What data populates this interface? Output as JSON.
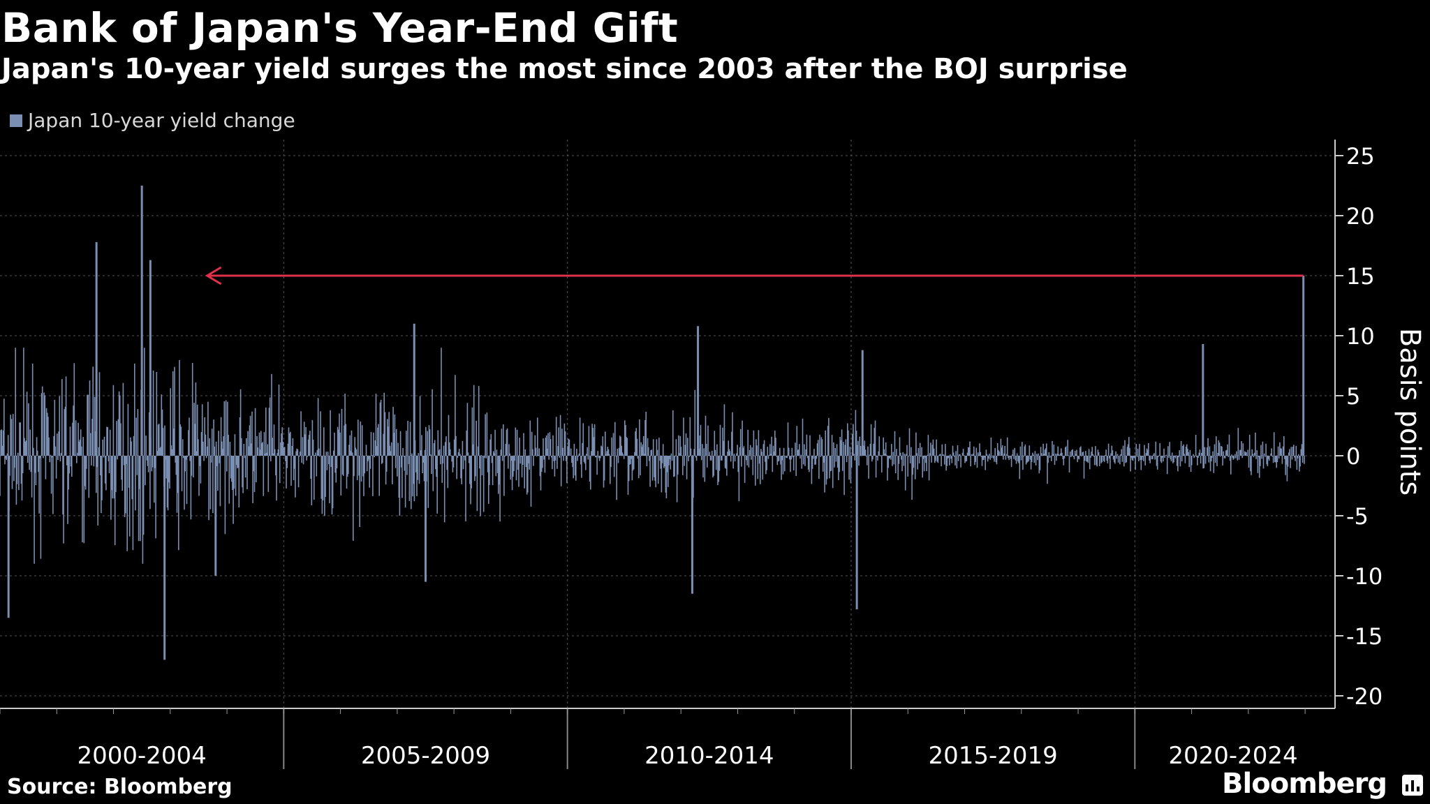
{
  "header": {
    "title": "Bank of Japan's Year-End Gift",
    "subtitle": "Japan's 10-year yield surges the most since 2003 after the BOJ surprise"
  },
  "footer": {
    "source": "Source: Bloomberg",
    "brand": "Bloomberg"
  },
  "colors": {
    "background": "#000000",
    "bars": "#7b8fb2",
    "arrow": "#e0304a",
    "grid": "#555555",
    "text": "#ffffff"
  },
  "chart_data": {
    "type": "bar",
    "title": "Bank of Japan's Year-End Gift",
    "subtitle": "Japan's 10-year yield surges the most since 2003 after the BOJ surprise",
    "ylabel": "Basis points",
    "xlabel": "",
    "ylim": [
      -21,
      26
    ],
    "yticks": [
      25,
      20,
      15,
      10,
      5,
      0,
      -5,
      -10,
      -15,
      -20
    ],
    "ytick_labels": [
      "25",
      "20",
      "15",
      "10",
      "5",
      "0",
      "-5",
      "-10",
      "-15",
      "-20"
    ],
    "x_range": [
      2000.0,
      2023.06
    ],
    "x_categories": [
      "2000-2004",
      "2005-2009",
      "2010-2014",
      "2015-2019",
      "2020-2024"
    ],
    "legend": [
      "Japan 10-year yield change"
    ],
    "legend_position": "top-left",
    "grid": true,
    "series": [
      {
        "name": "Japan 10-year yield change",
        "notable_values": [
          {
            "date": 2000.15,
            "value": -13.5
          },
          {
            "date": 2001.7,
            "value": 17.8
          },
          {
            "date": 2002.5,
            "value": 22.5
          },
          {
            "date": 2002.65,
            "value": 16.3
          },
          {
            "date": 2002.9,
            "value": -17.0
          },
          {
            "date": 2003.8,
            "value": -10.0
          },
          {
            "date": 2007.3,
            "value": 11.0
          },
          {
            "date": 2007.5,
            "value": -10.5
          },
          {
            "date": 2012.3,
            "value": 10.8
          },
          {
            "date": 2012.2,
            "value": -11.5
          },
          {
            "date": 2015.1,
            "value": -12.8
          },
          {
            "date": 2015.2,
            "value": 8.8
          },
          {
            "date": 2021.2,
            "value": 9.3
          },
          {
            "date": 2022.97,
            "value": 15.0
          }
        ]
      }
    ],
    "annotations": [
      {
        "type": "arrow",
        "from_date": 2022.97,
        "to_date": 2003.65,
        "value": 15
      }
    ]
  }
}
